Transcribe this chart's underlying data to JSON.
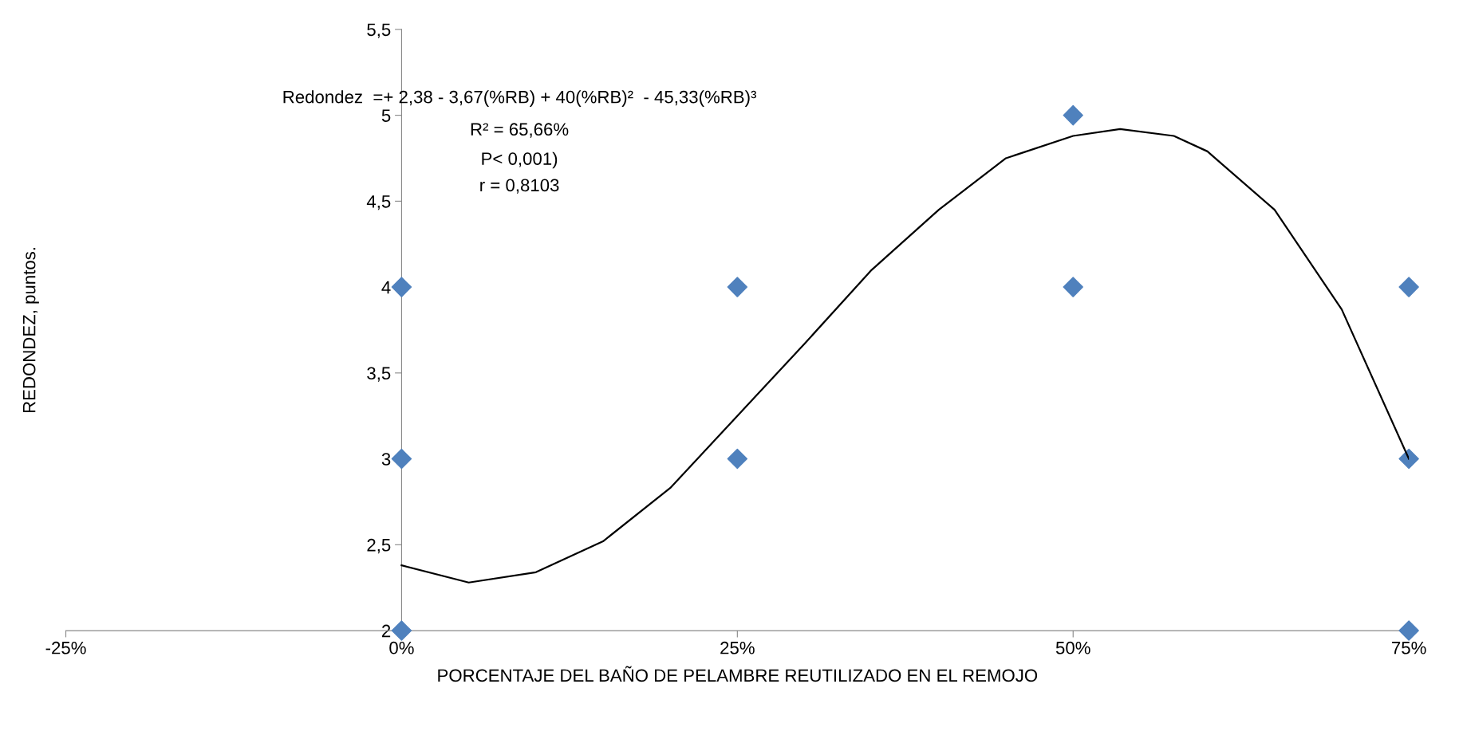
{
  "chart_data": {
    "type": "scatter",
    "xlabel": "PORCENTAJE DEL BAÑO DE PELAMBRE REUTILIZADO EN EL REMOJO",
    "ylabel": "REDONDEZ, puntos.",
    "xlim": [
      -25,
      75
    ],
    "xticks": [
      {
        "value": -25,
        "label": "-25%"
      },
      {
        "value": 0,
        "label": "0%"
      },
      {
        "value": 25,
        "label": "25%"
      },
      {
        "value": 50,
        "label": "50%"
      },
      {
        "value": 75,
        "label": "75%"
      }
    ],
    "ylim": [
      2,
      5.5
    ],
    "yticks": [
      {
        "value": 2,
        "label": "2"
      },
      {
        "value": 2.5,
        "label": "2,5"
      },
      {
        "value": 3,
        "label": "3"
      },
      {
        "value": 3.5,
        "label": "3,5"
      },
      {
        "value": 4,
        "label": "4"
      },
      {
        "value": 4.5,
        "label": "4,5"
      },
      {
        "value": 5,
        "label": "5"
      },
      {
        "value": 5.5,
        "label": "5,5"
      }
    ],
    "grid": false,
    "legend": false,
    "marker": "diamond",
    "series": [
      {
        "color": "#4f81bd",
        "x": [
          0,
          0,
          0,
          25,
          25,
          50,
          50,
          75,
          75,
          75
        ],
        "values": [
          4,
          3,
          2,
          4,
          3,
          5,
          4,
          4,
          3,
          2
        ]
      },
      {
        "type": "line",
        "color": "#000000",
        "line_style": "solid",
        "marker": "none",
        "x": [
          0,
          5,
          10,
          15,
          20,
          25,
          30,
          35,
          40,
          45,
          50,
          53.5,
          57.5,
          60,
          65,
          70,
          75
        ],
        "values": [
          2.38,
          2.28,
          2.34,
          2.52,
          2.83,
          3.25,
          3.67,
          4.1,
          4.45,
          4.75,
          4.88,
          4.92,
          4.88,
          4.79,
          4.45,
          3.87,
          3.0
        ]
      }
    ],
    "annotations": [
      "Redondez  =+ 2,38 - 3,67(%RB) + 40(%RB)²  - 45,33(%RB)³",
      "R² = 65,66%",
      "P< 0,001)",
      "r = 0,8103"
    ]
  }
}
